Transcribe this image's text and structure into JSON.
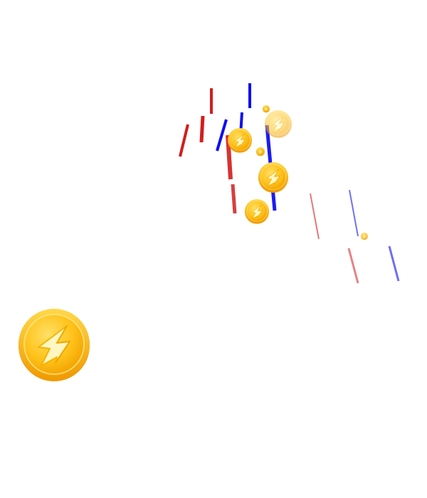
{
  "scene": {
    "background": "#ffffff",
    "type": "coin-reward-animation"
  },
  "colors": {
    "streak_red": "#d21e1e",
    "streak_blue": "#1010f0",
    "coin_gold": "#ffc21a",
    "coin_rim": "#f5a500",
    "coin_highlight": "#fff3b0"
  },
  "coin_icon": "lightning-coin-icon",
  "coins": [
    {
      "name": "coin-large",
      "opacity": 1.0
    },
    {
      "name": "coin-1",
      "opacity": 1.0
    },
    {
      "name": "coin-2",
      "opacity": 0.55
    },
    {
      "name": "coin-3",
      "opacity": 1.0
    },
    {
      "name": "coin-4",
      "opacity": 1.0
    },
    {
      "name": "coin-tiny-1",
      "opacity": 1.0
    },
    {
      "name": "coin-tiny-2",
      "opacity": 1.0
    },
    {
      "name": "coin-edge",
      "opacity": 0.8
    }
  ],
  "streaks": [
    {
      "name": "streak-red-1",
      "color": "red",
      "opacity": 1.0
    },
    {
      "name": "streak-red-2",
      "color": "red",
      "opacity": 1.0
    },
    {
      "name": "streak-red-3",
      "color": "red",
      "opacity": 1.0
    },
    {
      "name": "streak-red-4",
      "color": "red",
      "opacity": 0.9
    },
    {
      "name": "streak-red-5",
      "color": "red",
      "opacity": 0.85
    },
    {
      "name": "streak-red-6",
      "color": "red",
      "opacity": 0.6
    },
    {
      "name": "streak-red-7",
      "color": "red",
      "opacity": 0.55
    },
    {
      "name": "streak-blue-1",
      "color": "blue",
      "opacity": 1.0
    },
    {
      "name": "streak-blue-2",
      "color": "blue",
      "opacity": 1.0
    },
    {
      "name": "streak-blue-3",
      "color": "blue",
      "opacity": 1.0
    },
    {
      "name": "streak-blue-4",
      "color": "blue",
      "opacity": 0.95
    },
    {
      "name": "streak-blue-5",
      "color": "blue",
      "opacity": 0.6
    },
    {
      "name": "streak-blue-6",
      "color": "blue",
      "opacity": 0.6
    }
  ]
}
